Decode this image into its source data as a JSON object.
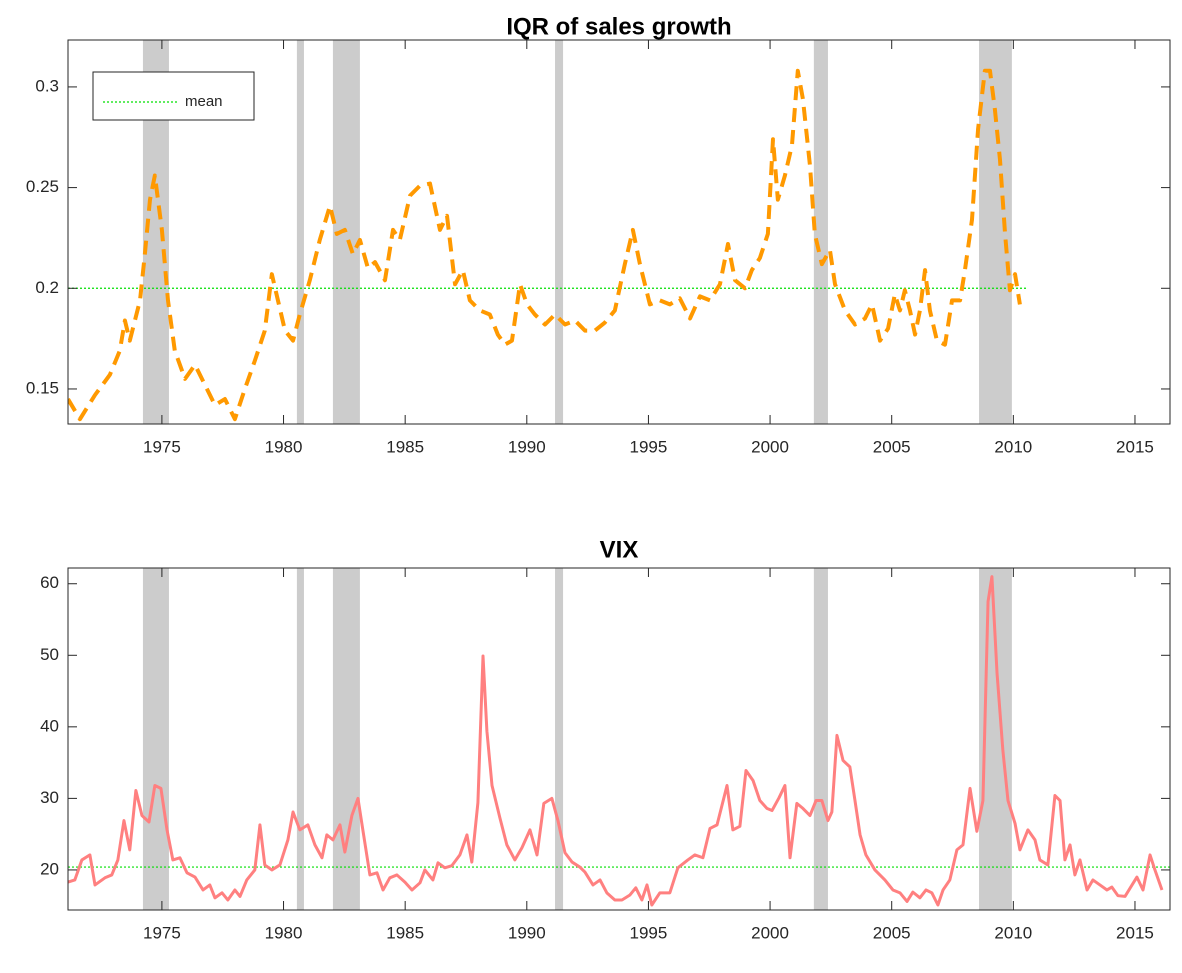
{
  "chart_data": [
    {
      "type": "line",
      "title": "IQR of sales growth",
      "x": [
        1971.14,
        1971.63,
        1972.25,
        1972.86,
        1973.27,
        1973.48,
        1973.68,
        1974.1,
        1974.3,
        1974.51,
        1974.71,
        1975.0,
        1975.25,
        1975.53,
        1975.95,
        1976.36,
        1976.77,
        1977.18,
        1977.59,
        1978.0,
        1978.41,
        1978.82,
        1979.23,
        1979.52,
        1979.77,
        1980.06,
        1980.39,
        1980.67,
        1981.08,
        1981.49,
        1981.91,
        1982.19,
        1982.52,
        1982.85,
        1983.14,
        1983.47,
        1983.76,
        1984.17,
        1984.5,
        1984.78,
        1985.2,
        1985.61,
        1986.02,
        1986.43,
        1986.72,
        1987.05,
        1987.37,
        1987.66,
        1988.07,
        1988.48,
        1988.81,
        1989.1,
        1989.39,
        1989.72,
        1990.01,
        1990.33,
        1990.75,
        1991.16,
        1991.57,
        1991.98,
        1992.39,
        1992.8,
        1993.21,
        1993.62,
        1994.03,
        1994.36,
        1994.65,
        1995.06,
        1995.47,
        1995.88,
        1996.29,
        1996.71,
        1997.12,
        1997.53,
        1997.94,
        1998.27,
        1998.56,
        1998.97,
        1999.25,
        1999.58,
        1999.91,
        2000.12,
        2000.32,
        2000.61,
        2000.9,
        2001.14,
        2001.35,
        2001.64,
        2001.84,
        2002.13,
        2002.46,
        2002.67,
        2003.08,
        2003.49,
        2003.9,
        2004.19,
        2004.52,
        2004.85,
        2005.13,
        2005.34,
        2005.54,
        2005.75,
        2005.96,
        2006.16,
        2006.37,
        2006.57,
        2006.86,
        2007.19,
        2007.48,
        2007.81,
        2008.01,
        2008.3,
        2008.55,
        2008.83,
        2009.04,
        2009.24,
        2009.45,
        2009.66,
        2009.86,
        2010.07,
        2010.27
      ],
      "values": [
        0.145,
        0.135,
        0.147,
        0.157,
        0.169,
        0.184,
        0.174,
        0.194,
        0.217,
        0.244,
        0.256,
        0.229,
        0.194,
        0.169,
        0.155,
        0.162,
        0.152,
        0.142,
        0.145,
        0.135,
        0.15,
        0.164,
        0.179,
        0.207,
        0.194,
        0.179,
        0.174,
        0.187,
        0.204,
        0.224,
        0.241,
        0.227,
        0.229,
        0.217,
        0.224,
        0.21,
        0.213,
        0.204,
        0.229,
        0.224,
        0.246,
        0.251,
        0.252,
        0.229,
        0.236,
        0.202,
        0.209,
        0.194,
        0.189,
        0.187,
        0.177,
        0.172,
        0.174,
        0.202,
        0.192,
        0.187,
        0.182,
        0.187,
        0.182,
        0.184,
        0.179,
        0.179,
        0.183,
        0.189,
        0.212,
        0.229,
        0.212,
        0.192,
        0.194,
        0.192,
        0.195,
        0.185,
        0.196,
        0.194,
        0.202,
        0.222,
        0.204,
        0.2,
        0.209,
        0.215,
        0.227,
        0.274,
        0.244,
        0.256,
        0.271,
        0.308,
        0.294,
        0.261,
        0.227,
        0.212,
        0.219,
        0.202,
        0.189,
        0.182,
        0.185,
        0.192,
        0.174,
        0.18,
        0.197,
        0.189,
        0.199,
        0.189,
        0.177,
        0.189,
        0.209,
        0.189,
        0.174,
        0.172,
        0.194,
        0.194,
        0.209,
        0.234,
        0.279,
        0.308,
        0.308,
        0.289,
        0.264,
        0.227,
        0.199,
        0.207,
        0.192
      ],
      "color": "#ff9900",
      "line_style": "dashed",
      "xlim": [
        1971.14,
        2016.44
      ],
      "xticks": [
        1975,
        1980,
        1985,
        1990,
        1995,
        2000,
        2005,
        2010,
        2015
      ],
      "ylim": [
        0.1326,
        0.3233
      ],
      "yticks": [
        0.15,
        0.2,
        0.25,
        0.3
      ],
      "shaded_ranges": [
        [
          1974.22,
          1975.29
        ],
        [
          1980.55,
          1980.84
        ],
        [
          1982.03,
          1983.14
        ],
        [
          1991.16,
          1991.49
        ],
        [
          2001.8,
          2002.38
        ],
        [
          2008.59,
          2009.94
        ]
      ],
      "shade_color": "#cccccc",
      "mean_line": {
        "name": "mean",
        "value": 0.2,
        "x_end": 2010.6,
        "color": "#00e000"
      },
      "legend": "upper left",
      "grid": false
    },
    {
      "type": "line",
      "title": "VIX",
      "x": [
        1971.14,
        1971.42,
        1971.71,
        1972.04,
        1972.25,
        1972.66,
        1972.94,
        1973.19,
        1973.44,
        1973.68,
        1973.93,
        1974.18,
        1974.47,
        1974.71,
        1974.96,
        1975.21,
        1975.45,
        1975.74,
        1976.03,
        1976.36,
        1976.69,
        1976.97,
        1977.18,
        1977.47,
        1977.71,
        1978.0,
        1978.21,
        1978.49,
        1978.82,
        1979.03,
        1979.23,
        1979.52,
        1979.85,
        1980.18,
        1980.39,
        1980.67,
        1981.0,
        1981.29,
        1981.58,
        1981.78,
        1982.03,
        1982.32,
        1982.52,
        1982.81,
        1983.06,
        1983.26,
        1983.55,
        1983.84,
        1984.09,
        1984.37,
        1984.66,
        1984.99,
        1985.28,
        1985.61,
        1985.81,
        1986.14,
        1986.35,
        1986.63,
        1986.92,
        1987.25,
        1987.54,
        1987.74,
        1987.99,
        1988.2,
        1988.36,
        1988.57,
        1988.9,
        1989.18,
        1989.51,
        1989.8,
        1990.13,
        1990.42,
        1990.7,
        1991.03,
        1991.28,
        1991.57,
        1991.86,
        1992.18,
        1992.39,
        1992.72,
        1993.01,
        1993.29,
        1993.62,
        1993.91,
        1994.24,
        1994.48,
        1994.73,
        1994.94,
        1995.14,
        1995.47,
        1995.88,
        1996.21,
        1996.62,
        1996.91,
        1997.24,
        1997.53,
        1997.82,
        1998.23,
        1998.47,
        1998.76,
        1999.01,
        1999.3,
        1999.58,
        1999.87,
        2000.08,
        2000.37,
        2000.61,
        2000.82,
        2001.1,
        2001.35,
        2001.64,
        2001.89,
        2002.13,
        2002.38,
        2002.54,
        2002.75,
        2003.0,
        2003.28,
        2003.49,
        2003.7,
        2003.94,
        2004.31,
        2004.72,
        2005.05,
        2005.34,
        2005.63,
        2005.87,
        2006.16,
        2006.41,
        2006.65,
        2006.9,
        2007.11,
        2007.39,
        2007.68,
        2007.93,
        2008.22,
        2008.5,
        2008.75,
        2008.96,
        2009.12,
        2009.33,
        2009.57,
        2009.78,
        2010.07,
        2010.27,
        2010.6,
        2010.89,
        2011.09,
        2011.42,
        2011.71,
        2011.92,
        2012.12,
        2012.33,
        2012.53,
        2012.74,
        2013.03,
        2013.27,
        2013.56,
        2013.85,
        2014.05,
        2014.3,
        2014.59,
        2014.88,
        2015.08,
        2015.33,
        2015.62,
        2015.82,
        2016.11
      ],
      "values": [
        18.3,
        18.6,
        21.4,
        22.1,
        17.9,
        18.9,
        19.3,
        21.4,
        26.9,
        22.8,
        31.1,
        27.6,
        26.7,
        31.8,
        31.4,
        25.6,
        21.4,
        21.7,
        19.6,
        19.0,
        17.2,
        17.9,
        16.1,
        16.8,
        15.8,
        17.2,
        16.3,
        18.6,
        20.0,
        26.3,
        20.7,
        20.0,
        20.7,
        24.2,
        28.1,
        25.6,
        26.3,
        23.5,
        21.7,
        24.9,
        24.2,
        26.3,
        22.5,
        27.6,
        30.0,
        25.6,
        19.3,
        19.6,
        17.2,
        18.9,
        19.3,
        18.3,
        17.2,
        18.2,
        20.0,
        18.6,
        21.0,
        20.3,
        20.6,
        22.1,
        24.9,
        21.1,
        29.4,
        49.9,
        39.4,
        31.8,
        27.2,
        23.5,
        21.4,
        23.1,
        25.6,
        22.1,
        29.3,
        30.0,
        26.9,
        22.4,
        21.1,
        20.4,
        19.7,
        17.9,
        18.6,
        16.8,
        15.8,
        15.8,
        16.5,
        17.5,
        15.8,
        17.9,
        15.1,
        16.8,
        16.8,
        20.3,
        21.4,
        22.1,
        21.7,
        25.8,
        26.3,
        31.8,
        25.6,
        26.1,
        33.9,
        32.5,
        29.7,
        28.6,
        28.3,
        30.1,
        31.8,
        21.7,
        29.3,
        28.6,
        27.6,
        29.7,
        29.7,
        26.9,
        28.1,
        38.8,
        35.3,
        34.4,
        29.7,
        24.9,
        22.1,
        20.0,
        18.6,
        17.2,
        16.8,
        15.6,
        16.9,
        16.1,
        17.2,
        16.8,
        15.1,
        17.2,
        18.6,
        22.8,
        23.5,
        31.4,
        25.4,
        29.7,
        57.5,
        61.0,
        47.5,
        36.7,
        29.7,
        26.5,
        22.8,
        25.6,
        24.2,
        21.4,
        20.7,
        30.4,
        29.7,
        21.4,
        23.5,
        19.3,
        21.4,
        17.2,
        18.6,
        17.9,
        17.2,
        17.6,
        16.4,
        16.3,
        17.9,
        19.0,
        17.2,
        22.1,
        20.0,
        17.2
      ],
      "color": "#ff8080",
      "line_style": "solid",
      "xlim": [
        1971.14,
        2016.44
      ],
      "xticks": [
        1975,
        1980,
        1985,
        1990,
        1995,
        2000,
        2005,
        2010,
        2015
      ],
      "ylim": [
        14.4,
        62.2
      ],
      "yticks": [
        20,
        30,
        40,
        50,
        60
      ],
      "shaded_ranges": [
        [
          1974.22,
          1975.29
        ],
        [
          1980.55,
          1980.84
        ],
        [
          1982.03,
          1983.14
        ],
        [
          1991.16,
          1991.49
        ],
        [
          2001.8,
          2002.38
        ],
        [
          2008.59,
          2009.94
        ]
      ],
      "shade_color": "#cccccc",
      "mean_line": {
        "value": 20.4,
        "color": "#00e000"
      },
      "grid": false
    }
  ]
}
